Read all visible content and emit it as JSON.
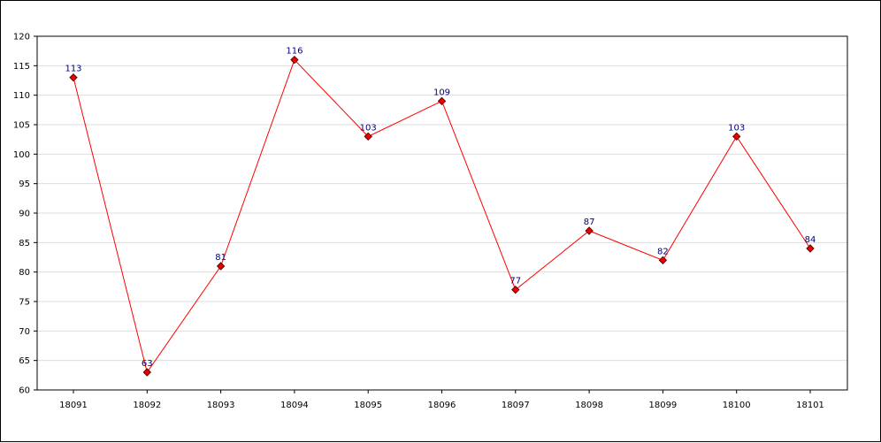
{
  "chart_data": {
    "type": "line",
    "title": "",
    "xlabel": "",
    "ylabel": "",
    "categories": [
      "18091",
      "18092",
      "18093",
      "18094",
      "18095",
      "18096",
      "18097",
      "18098",
      "18099",
      "18100",
      "18101"
    ],
    "series": [
      {
        "values": [
          113,
          63,
          81,
          116,
          103,
          109,
          77,
          87,
          82,
          103,
          84
        ]
      }
    ],
    "ylim": [
      60,
      120
    ],
    "y_ticks": [
      60,
      65,
      70,
      75,
      80,
      85,
      90,
      95,
      100,
      105,
      110,
      115,
      120
    ],
    "grid": "horizontal",
    "data_labels": true,
    "colors": {
      "line": "#ff0000",
      "marker_fill": "#ee0000",
      "marker_stroke": "#660000",
      "data_label": "#000080",
      "grid": "#dddddd",
      "axis": "#000000"
    }
  }
}
